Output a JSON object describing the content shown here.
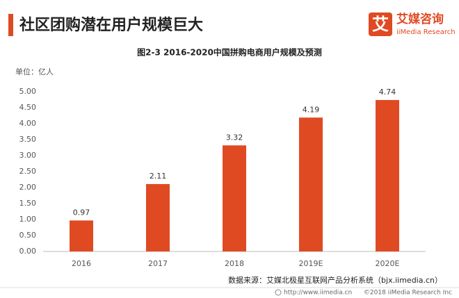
{
  "header": {
    "title": "社区团购潜在用户规模巨大",
    "logo_mark": "艾",
    "logo_name": "艾媒咨询",
    "logo_sub": "iiMedia Research"
  },
  "chart_data": {
    "type": "bar",
    "title": "图2-3 2016-2020中国拼购电商用户规模及预测",
    "unit": "单位：亿人",
    "categories": [
      "2016",
      "2017",
      "2018",
      "2019E",
      "2020E"
    ],
    "values": [
      0.97,
      2.11,
      3.32,
      4.19,
      4.74
    ],
    "color": "#e04a23",
    "ylim": [
      0,
      5
    ],
    "yticks": [
      {
        "value": 0,
        "label": "0.00"
      },
      {
        "value": 0.5,
        "label": "0.50"
      },
      {
        "value": 1,
        "label": "1.00"
      },
      {
        "value": 1.5,
        "label": "1.50"
      },
      {
        "value": 2,
        "label": "2.00"
      },
      {
        "value": 2.5,
        "label": "2.50"
      },
      {
        "value": 3,
        "label": "3.00"
      },
      {
        "value": 3.5,
        "label": "3.50"
      },
      {
        "value": 4,
        "label": "4.00"
      },
      {
        "value": 4.5,
        "label": "4.50"
      },
      {
        "value": 5,
        "label": "5.00"
      }
    ],
    "source": "数据来源：艾媒北极星互联网产品分析系统（bjx.iimedia.cn）"
  },
  "footer": {
    "url": "http://www.iimedia.cn",
    "copyright": "©2018  iiMedia Research  Inc"
  }
}
